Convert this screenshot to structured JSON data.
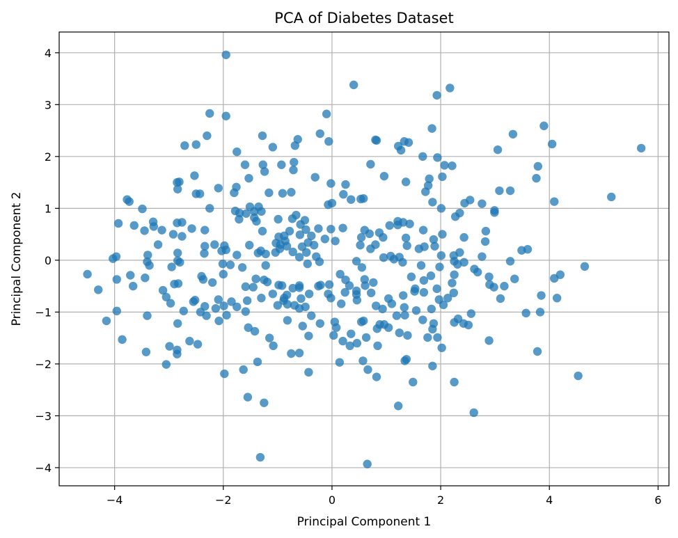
{
  "chart_data": {
    "type": "scatter",
    "title": "PCA of Diabetes Dataset",
    "xlabel": "Principal Component 1",
    "ylabel": "Principal Component 2",
    "xlim": [
      -5.02,
      6.2
    ],
    "ylim": [
      -4.35,
      4.4
    ],
    "x_ticks": [
      -4,
      -2,
      0,
      2,
      4,
      6
    ],
    "y_ticks": [
      -4,
      -3,
      -2,
      -1,
      0,
      1,
      2,
      3,
      4
    ],
    "x_tick_labels": [
      "−4",
      "−2",
      "0",
      "2",
      "4",
      "6"
    ],
    "y_tick_labels": [
      "−4",
      "−3",
      "−2",
      "−1",
      "0",
      "1",
      "2",
      "3",
      "4"
    ],
    "grid": true,
    "marker_color": "#1f77b4",
    "marker_alpha": 0.75,
    "points": [
      [
        -1.95,
        3.96
      ],
      [
        0.4,
        3.38
      ],
      [
        2.17,
        3.32
      ],
      [
        1.93,
        3.18
      ],
      [
        -2.25,
        2.83
      ],
      [
        -1.95,
        2.78
      ],
      [
        -0.1,
        2.82
      ],
      [
        1.84,
        2.54
      ],
      [
        3.9,
        2.59
      ],
      [
        -2.3,
        2.4
      ],
      [
        -1.28,
        2.4
      ],
      [
        -0.22,
        2.44
      ],
      [
        -0.06,
        2.29
      ],
      [
        0.8,
        2.32
      ],
      [
        0.82,
        2.31
      ],
      [
        3.33,
        2.43
      ],
      [
        -0.63,
        2.33
      ],
      [
        1.33,
        2.29
      ],
      [
        1.41,
        2.27
      ],
      [
        -2.71,
        2.21
      ],
      [
        -2.5,
        2.23
      ],
      [
        -1.75,
        2.09
      ],
      [
        -1.09,
        2.18
      ],
      [
        -0.68,
        2.21
      ],
      [
        1.22,
        2.2
      ],
      [
        1.27,
        2.12
      ],
      [
        1.67,
        2.0
      ],
      [
        1.94,
        1.98
      ],
      [
        3.05,
        2.13
      ],
      [
        4.05,
        2.24
      ],
      [
        5.69,
        2.16
      ],
      [
        -1.6,
        1.84
      ],
      [
        -1.27,
        1.84
      ],
      [
        -0.93,
        1.84
      ],
      [
        -0.7,
        1.89
      ],
      [
        -0.71,
        1.74
      ],
      [
        0.71,
        1.85
      ],
      [
        -1.24,
        1.71
      ],
      [
        -2.53,
        1.63
      ],
      [
        0.96,
        1.62
      ],
      [
        2.07,
        1.83
      ],
      [
        2.21,
        1.82
      ],
      [
        1.36,
        1.51
      ],
      [
        1.79,
        1.57
      ],
      [
        2.03,
        1.61
      ],
      [
        3.79,
        1.81
      ],
      [
        -1.53,
        1.58
      ],
      [
        -0.31,
        1.6
      ],
      [
        3.76,
        1.58
      ],
      [
        -2.81,
        1.51
      ],
      [
        -2.85,
        1.5
      ],
      [
        -2.09,
        1.39
      ],
      [
        -0.02,
        1.48
      ],
      [
        0.25,
        1.46
      ],
      [
        1.77,
        1.44
      ],
      [
        -2.84,
        1.37
      ],
      [
        -1.76,
        1.41
      ],
      [
        1.72,
        1.32
      ],
      [
        3.08,
        1.34
      ],
      [
        3.28,
        1.34
      ],
      [
        -2.5,
        1.28
      ],
      [
        -2.43,
        1.28
      ],
      [
        -1.8,
        1.3
      ],
      [
        -0.75,
        1.31
      ],
      [
        -0.91,
        1.29
      ],
      [
        0.21,
        1.27
      ],
      [
        -3.77,
        1.17
      ],
      [
        -3.73,
        1.13
      ],
      [
        -1.16,
        1.3
      ],
      [
        0.35,
        1.17
      ],
      [
        0.53,
        1.18
      ],
      [
        0.58,
        1.19
      ],
      [
        5.14,
        1.22
      ],
      [
        4.09,
        1.13
      ],
      [
        -3.49,
        0.99
      ],
      [
        -2.25,
        1.0
      ],
      [
        -1.51,
        1.03
      ],
      [
        -1.43,
        0.94
      ],
      [
        -1.78,
        0.95
      ],
      [
        -1.7,
        0.91
      ],
      [
        -1.3,
        0.94
      ],
      [
        -1.58,
        0.9
      ],
      [
        -1.35,
        1.03
      ],
      [
        -0.07,
        1.07
      ],
      [
        0.0,
        1.1
      ],
      [
        1.85,
        1.12
      ],
      [
        2.01,
        1.0
      ],
      [
        2.44,
        1.1
      ],
      [
        2.54,
        1.16
      ],
      [
        2.76,
        1.09
      ],
      [
        2.99,
        0.96
      ],
      [
        -3.93,
        0.71
      ],
      [
        -3.29,
        0.74
      ],
      [
        -2.85,
        0.72
      ],
      [
        -2.76,
        0.73
      ],
      [
        -1.71,
        0.79
      ],
      [
        -1.43,
        0.82
      ],
      [
        -1.39,
        0.75
      ],
      [
        -0.99,
        0.79
      ],
      [
        -0.66,
        0.87
      ],
      [
        -0.5,
        0.77
      ],
      [
        -0.73,
        0.8
      ],
      [
        -0.58,
        0.69
      ],
      [
        1.06,
        0.67
      ],
      [
        1.21,
        0.75
      ],
      [
        1.31,
        0.73
      ],
      [
        1.21,
        0.68
      ],
      [
        1.43,
        0.7
      ],
      [
        2.27,
        0.84
      ],
      [
        2.35,
        0.91
      ],
      [
        2.99,
        0.92
      ],
      [
        -3.64,
        0.67
      ],
      [
        -3.45,
        0.57
      ],
      [
        -3.28,
        0.65
      ],
      [
        -3.13,
        0.58
      ],
      [
        -2.92,
        0.5
      ],
      [
        -2.58,
        0.61
      ],
      [
        -2.34,
        0.58
      ],
      [
        -1.28,
        0.56
      ],
      [
        -0.78,
        0.56
      ],
      [
        -0.48,
        0.59
      ],
      [
        -0.25,
        0.61
      ],
      [
        -0.02,
        0.6
      ],
      [
        0.2,
        0.62
      ],
      [
        0.6,
        0.58
      ],
      [
        0.54,
        0.44
      ],
      [
        0.69,
        0.51
      ],
      [
        1.68,
        0.58
      ],
      [
        2.03,
        0.5
      ],
      [
        2.83,
        0.56
      ],
      [
        -2.76,
        0.46
      ],
      [
        -0.98,
        0.45
      ],
      [
        -0.88,
        0.47
      ],
      [
        -0.59,
        0.49
      ],
      [
        -0.38,
        0.47
      ],
      [
        -0.13,
        0.41
      ],
      [
        0.06,
        0.37
      ],
      [
        0.87,
        0.53
      ],
      [
        0.94,
        0.44
      ],
      [
        1.36,
        0.43
      ],
      [
        1.87,
        0.4
      ],
      [
        2.43,
        0.44
      ],
      [
        -3.2,
        0.3
      ],
      [
        -2.34,
        0.27
      ],
      [
        -2.16,
        0.3
      ],
      [
        -1.98,
        0.28
      ],
      [
        -1.95,
        0.2
      ],
      [
        -1.52,
        0.29
      ],
      [
        -1.03,
        0.33
      ],
      [
        -0.86,
        0.37
      ],
      [
        -0.83,
        0.27
      ],
      [
        -0.55,
        0.26
      ],
      [
        -0.44,
        0.34
      ],
      [
        -0.33,
        0.29
      ],
      [
        0.52,
        0.29
      ],
      [
        0.8,
        0.3
      ],
      [
        0.71,
        0.22
      ],
      [
        1.38,
        0.28
      ],
      [
        1.6,
        0.22
      ],
      [
        1.7,
        0.26
      ],
      [
        1.89,
        0.27
      ],
      [
        2.82,
        0.36
      ],
      [
        3.49,
        0.19
      ],
      [
        3.6,
        0.21
      ],
      [
        -3.97,
        0.07
      ],
      [
        -3.39,
        0.1
      ],
      [
        -2.84,
        0.14
      ],
      [
        -2.35,
        0.13
      ],
      [
        -2.03,
        0.18
      ],
      [
        -1.75,
        0.1
      ],
      [
        -1.36,
        0.14
      ],
      [
        -1.31,
        0.18
      ],
      [
        -1.22,
        0.12
      ],
      [
        -1.04,
        0.15
      ],
      [
        -0.96,
        0.22
      ],
      [
        -0.95,
        0.3
      ],
      [
        -0.72,
        0.16
      ],
      [
        -0.6,
        0.06
      ],
      [
        -0.47,
        0.15
      ],
      [
        -0.29,
        0.07
      ],
      [
        0.95,
        0.05
      ],
      [
        1.08,
        0.08
      ],
      [
        1.14,
        0.02
      ],
      [
        1.24,
        0.06
      ],
      [
        2.01,
        0.09
      ],
      [
        2.24,
        0.09
      ],
      [
        2.35,
        0.15
      ],
      [
        2.43,
        -0.04
      ],
      [
        2.76,
        0.07
      ],
      [
        -4.03,
        0.03
      ],
      [
        -3.4,
        -0.03
      ],
      [
        -3.36,
        -0.1
      ],
      [
        -2.95,
        -0.13
      ],
      [
        -2.84,
        -0.01
      ],
      [
        -2.8,
        -0.04
      ],
      [
        -2.01,
        -0.07
      ],
      [
        -1.87,
        -0.09
      ],
      [
        -1.65,
        -0.14
      ],
      [
        -1.22,
        -0.1
      ],
      [
        -0.45,
        -0.07
      ],
      [
        -0.23,
        -0.03
      ],
      [
        0.45,
        -0.02
      ],
      [
        0.55,
        -0.14
      ],
      [
        1.3,
        -0.04
      ],
      [
        1.64,
        -0.1
      ],
      [
        1.98,
        -0.13
      ],
      [
        2.25,
        -0.02
      ],
      [
        2.31,
        -0.08
      ],
      [
        3.28,
        -0.02
      ],
      [
        4.65,
        -0.12
      ],
      [
        -4.5,
        -0.27
      ],
      [
        -3.44,
        -0.34
      ],
      [
        -3.71,
        -0.29
      ],
      [
        -3.66,
        -0.5
      ],
      [
        -3.96,
        -0.37
      ],
      [
        -2.9,
        -0.46
      ],
      [
        -2.83,
        -0.45
      ],
      [
        -2.4,
        -0.31
      ],
      [
        -2.37,
        -0.37
      ],
      [
        -2.2,
        -0.43
      ],
      [
        -2.0,
        -0.27
      ],
      [
        -1.4,
        -0.36
      ],
      [
        -1.25,
        -0.38
      ],
      [
        -1.19,
        -0.42
      ],
      [
        -1.59,
        -0.51
      ],
      [
        -1.45,
        -0.52
      ],
      [
        -0.98,
        -0.48
      ],
      [
        -0.92,
        -0.49
      ],
      [
        -0.72,
        -0.54
      ],
      [
        -0.6,
        -0.49
      ],
      [
        -0.25,
        -0.5
      ],
      [
        -0.21,
        -0.48
      ],
      [
        -0.05,
        -0.47
      ],
      [
        0.15,
        -0.27
      ],
      [
        0.25,
        -0.38
      ],
      [
        0.32,
        -0.49
      ],
      [
        0.45,
        -0.59
      ],
      [
        0.6,
        -0.37
      ],
      [
        0.61,
        -0.49
      ],
      [
        0.76,
        -0.43
      ],
      [
        1.46,
        -0.32
      ],
      [
        1.53,
        -0.55
      ],
      [
        1.69,
        -0.39
      ],
      [
        1.82,
        -0.3
      ],
      [
        2.21,
        -0.44
      ],
      [
        2.25,
        -0.28
      ],
      [
        2.62,
        -0.17
      ],
      [
        2.68,
        -0.23
      ],
      [
        2.89,
        -0.32
      ],
      [
        3.17,
        -0.5
      ],
      [
        3.36,
        -0.36
      ],
      [
        4.09,
        -0.35
      ],
      [
        4.2,
        -0.28
      ],
      [
        -4.3,
        -0.57
      ],
      [
        -3.11,
        -0.58
      ],
      [
        -2.52,
        -0.77
      ],
      [
        -2.34,
        -0.89
      ],
      [
        -2.09,
        -0.76
      ],
      [
        -1.85,
        -0.8
      ],
      [
        -1.56,
        -0.78
      ],
      [
        -1.3,
        -0.73
      ],
      [
        -1.09,
        -0.65
      ],
      [
        -0.88,
        -0.73
      ],
      [
        -0.83,
        -0.67
      ],
      [
        -0.6,
        -0.53
      ],
      [
        -0.42,
        -0.65
      ],
      [
        -0.57,
        -0.74
      ],
      [
        -0.07,
        -0.65
      ],
      [
        0.24,
        -0.62
      ],
      [
        0.45,
        -0.66
      ],
      [
        0.72,
        -0.63
      ],
      [
        1.04,
        -0.74
      ],
      [
        1.31,
        -0.68
      ],
      [
        1.52,
        -0.6
      ],
      [
        1.69,
        -0.62
      ],
      [
        1.93,
        -0.55
      ],
      [
        1.97,
        -0.76
      ],
      [
        2.13,
        -0.73
      ],
      [
        2.24,
        -0.63
      ],
      [
        2.9,
        -0.47
      ],
      [
        2.98,
        -0.52
      ],
      [
        3.1,
        -0.74
      ],
      [
        3.85,
        -0.68
      ],
      [
        4.14,
        -0.73
      ],
      [
        -3.96,
        -0.98
      ],
      [
        -3.4,
        -1.07
      ],
      [
        -3.05,
        -0.71
      ],
      [
        -2.97,
        -0.83
      ],
      [
        -2.73,
        -0.98
      ],
      [
        -2.55,
        -0.8
      ],
      [
        -2.42,
        -1.0
      ],
      [
        -2.14,
        -0.93
      ],
      [
        -1.99,
        -0.88
      ],
      [
        -1.75,
        -0.9
      ],
      [
        -1.59,
        -0.99
      ],
      [
        -1.0,
        -0.87
      ],
      [
        -0.89,
        -0.78
      ],
      [
        -0.82,
        -0.85
      ],
      [
        -0.69,
        -0.87
      ],
      [
        -0.6,
        -0.93
      ],
      [
        -0.49,
        -0.9
      ],
      [
        -0.02,
        -0.73
      ],
      [
        0.17,
        -0.84
      ],
      [
        0.46,
        -0.77
      ],
      [
        0.93,
        -0.94
      ],
      [
        0.81,
        -0.88
      ],
      [
        1.1,
        -0.84
      ],
      [
        1.33,
        -0.91
      ],
      [
        1.55,
        -0.97
      ],
      [
        1.83,
        -0.94
      ],
      [
        2.05,
        -0.86
      ],
      [
        2.56,
        -1.03
      ],
      [
        3.57,
        -1.02
      ],
      [
        3.83,
        -1.0
      ],
      [
        -4.15,
        -1.17
      ],
      [
        -2.84,
        -1.22
      ],
      [
        -2.31,
        -1.07
      ],
      [
        -2.08,
        -1.17
      ],
      [
        -1.94,
        -1.06
      ],
      [
        -1.54,
        -1.3
      ],
      [
        -1.42,
        -1.37
      ],
      [
        -0.82,
        -1.16
      ],
      [
        -0.54,
        -1.27
      ],
      [
        -0.38,
        -1.07
      ],
      [
        -0.22,
        -1.22
      ],
      [
        0.05,
        -1.19
      ],
      [
        0.08,
        -1.3
      ],
      [
        0.35,
        -1.42
      ],
      [
        0.54,
        -1.19
      ],
      [
        0.58,
        -1.17
      ],
      [
        0.88,
        -1.24
      ],
      [
        0.96,
        -1.24
      ],
      [
        0.83,
        -1.32
      ],
      [
        1.04,
        -1.3
      ],
      [
        1.19,
        -1.07
      ],
      [
        1.34,
        -1.06
      ],
      [
        1.67,
        -1.15
      ],
      [
        1.87,
        -1.22
      ],
      [
        1.85,
        -1.33
      ],
      [
        2.25,
        -1.2
      ],
      [
        2.32,
        -1.13
      ],
      [
        2.42,
        -1.22
      ],
      [
        2.51,
        -1.25
      ],
      [
        -3.86,
        -1.53
      ],
      [
        -3.42,
        -1.77
      ],
      [
        -2.99,
        -1.66
      ],
      [
        -2.62,
        -1.56
      ],
      [
        -2.47,
        -1.62
      ],
      [
        -1.15,
        -1.5
      ],
      [
        -1.08,
        -1.65
      ],
      [
        -0.6,
        -1.79
      ],
      [
        -0.75,
        -1.8
      ],
      [
        -0.43,
        -1.46
      ],
      [
        0.03,
        -1.45
      ],
      [
        0.2,
        -1.56
      ],
      [
        0.33,
        -1.65
      ],
      [
        0.46,
        -1.6
      ],
      [
        0.63,
        -1.49
      ],
      [
        0.84,
        -1.65
      ],
      [
        1.24,
        -1.4
      ],
      [
        1.39,
        -1.45
      ],
      [
        1.76,
        -1.49
      ],
      [
        1.94,
        -1.49
      ],
      [
        2.02,
        -1.69
      ],
      [
        2.89,
        -1.55
      ],
      [
        3.78,
        -1.76
      ],
      [
        -3.05,
        -2.01
      ],
      [
        -2.85,
        -1.73
      ],
      [
        -2.85,
        -1.81
      ],
      [
        -1.98,
        -2.19
      ],
      [
        -1.37,
        -1.96
      ],
      [
        -1.63,
        -2.11
      ],
      [
        -0.43,
        -2.16
      ],
      [
        0.14,
        -1.97
      ],
      [
        0.57,
        -1.94
      ],
      [
        1.34,
        -1.94
      ],
      [
        1.37,
        -1.91
      ],
      [
        1.85,
        -2.04
      ],
      [
        0.66,
        -2.11
      ],
      [
        0.82,
        -2.25
      ],
      [
        1.49,
        -2.35
      ],
      [
        2.25,
        -2.35
      ],
      [
        4.53,
        -2.23
      ],
      [
        -1.55,
        -2.64
      ],
      [
        -1.25,
        -2.75
      ],
      [
        1.22,
        -2.81
      ],
      [
        2.61,
        -2.94
      ],
      [
        -1.32,
        -3.8
      ],
      [
        0.65,
        -3.93
      ]
    ]
  }
}
